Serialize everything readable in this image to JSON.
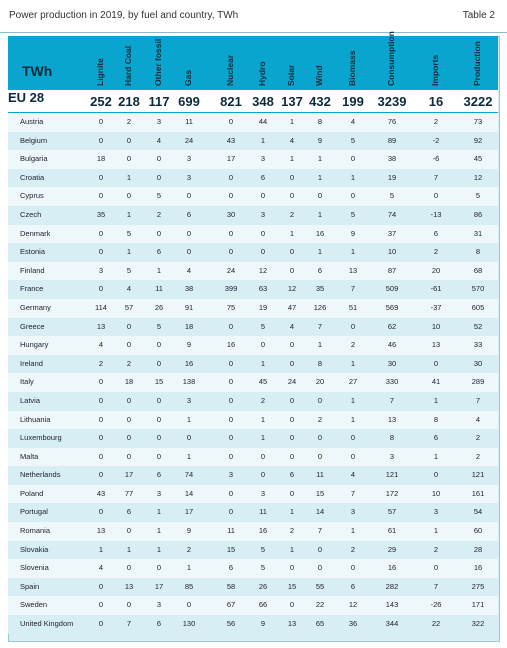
{
  "header": {
    "title": "Power production in 2019, by fuel and country, TWh",
    "tag": "Table 2",
    "unit_label": "TWh"
  },
  "columns": [
    "Lignite",
    "Hard Coal",
    "Other fossil",
    "Gas",
    "Nuclear",
    "Hydro",
    "Solar",
    "Wind",
    "Biomass",
    "Consumption",
    "Imports",
    "Production"
  ],
  "eu_row": {
    "name": "EU 28",
    "values": [
      "252",
      "218",
      "117",
      "699",
      "821",
      "348",
      "137",
      "432",
      "199",
      "3239",
      "16",
      "3222"
    ]
  },
  "rows": [
    {
      "name": "Austria",
      "values": [
        "0",
        "2",
        "3",
        "11",
        "0",
        "44",
        "1",
        "8",
        "4",
        "76",
        "2",
        "73"
      ]
    },
    {
      "name": "Belgium",
      "values": [
        "0",
        "0",
        "4",
        "24",
        "43",
        "1",
        "4",
        "9",
        "5",
        "89",
        "-2",
        "92"
      ]
    },
    {
      "name": "Bulgaria",
      "values": [
        "18",
        "0",
        "0",
        "3",
        "17",
        "3",
        "1",
        "1",
        "0",
        "38",
        "-6",
        "45"
      ]
    },
    {
      "name": "Croatia",
      "values": [
        "0",
        "1",
        "0",
        "3",
        "0",
        "6",
        "0",
        "1",
        "1",
        "19",
        "7",
        "12"
      ]
    },
    {
      "name": "Cyprus",
      "values": [
        "0",
        "0",
        "5",
        "0",
        "0",
        "0",
        "0",
        "0",
        "0",
        "5",
        "0",
        "5"
      ]
    },
    {
      "name": "Czech",
      "values": [
        "35",
        "1",
        "2",
        "6",
        "30",
        "3",
        "2",
        "1",
        "5",
        "74",
        "-13",
        "86"
      ]
    },
    {
      "name": "Denmark",
      "values": [
        "0",
        "5",
        "0",
        "0",
        "0",
        "0",
        "1",
        "16",
        "9",
        "37",
        "6",
        "31"
      ]
    },
    {
      "name": "Estonia",
      "values": [
        "0",
        "1",
        "6",
        "0",
        "0",
        "0",
        "0",
        "1",
        "1",
        "10",
        "2",
        "8"
      ]
    },
    {
      "name": "Finland",
      "values": [
        "3",
        "5",
        "1",
        "4",
        "24",
        "12",
        "0",
        "6",
        "13",
        "87",
        "20",
        "68"
      ]
    },
    {
      "name": "France",
      "values": [
        "0",
        "4",
        "11",
        "38",
        "399",
        "63",
        "12",
        "35",
        "7",
        "509",
        "-61",
        "570"
      ]
    },
    {
      "name": "Germany",
      "values": [
        "114",
        "57",
        "26",
        "91",
        "75",
        "19",
        "47",
        "126",
        "51",
        "569",
        "-37",
        "605"
      ]
    },
    {
      "name": "Greece",
      "values": [
        "13",
        "0",
        "5",
        "18",
        "0",
        "5",
        "4",
        "7",
        "0",
        "62",
        "10",
        "52"
      ]
    },
    {
      "name": "Hungary",
      "values": [
        "4",
        "0",
        "0",
        "9",
        "16",
        "0",
        "0",
        "1",
        "2",
        "46",
        "13",
        "33"
      ]
    },
    {
      "name": "Ireland",
      "values": [
        "2",
        "2",
        "0",
        "16",
        "0",
        "1",
        "0",
        "8",
        "1",
        "30",
        "0",
        "30"
      ]
    },
    {
      "name": "Italy",
      "values": [
        "0",
        "18",
        "15",
        "138",
        "0",
        "45",
        "24",
        "20",
        "27",
        "330",
        "41",
        "289"
      ]
    },
    {
      "name": "Latvia",
      "values": [
        "0",
        "0",
        "0",
        "3",
        "0",
        "2",
        "0",
        "0",
        "1",
        "7",
        "1",
        "7"
      ]
    },
    {
      "name": "Lithuania",
      "values": [
        "0",
        "0",
        "0",
        "1",
        "0",
        "1",
        "0",
        "2",
        "1",
        "13",
        "8",
        "4"
      ]
    },
    {
      "name": "Luxembourg",
      "values": [
        "0",
        "0",
        "0",
        "0",
        "0",
        "1",
        "0",
        "0",
        "0",
        "8",
        "6",
        "2"
      ]
    },
    {
      "name": "Malta",
      "values": [
        "0",
        "0",
        "0",
        "1",
        "0",
        "0",
        "0",
        "0",
        "0",
        "3",
        "1",
        "2"
      ]
    },
    {
      "name": "Netherlands",
      "values": [
        "0",
        "17",
        "6",
        "74",
        "3",
        "0",
        "6",
        "11",
        "4",
        "121",
        "0",
        "121"
      ]
    },
    {
      "name": "Poland",
      "values": [
        "43",
        "77",
        "3",
        "14",
        "0",
        "3",
        "0",
        "15",
        "7",
        "172",
        "10",
        "161"
      ]
    },
    {
      "name": "Portugal",
      "values": [
        "0",
        "6",
        "1",
        "17",
        "0",
        "11",
        "1",
        "14",
        "3",
        "57",
        "3",
        "54"
      ]
    },
    {
      "name": "Romania",
      "values": [
        "13",
        "0",
        "1",
        "9",
        "11",
        "16",
        "2",
        "7",
        "1",
        "61",
        "1",
        "60"
      ]
    },
    {
      "name": "Slovakia",
      "values": [
        "1",
        "1",
        "1",
        "2",
        "15",
        "5",
        "1",
        "0",
        "2",
        "29",
        "2",
        "28"
      ]
    },
    {
      "name": "Slovenia",
      "values": [
        "4",
        "0",
        "0",
        "1",
        "6",
        "5",
        "0",
        "0",
        "0",
        "16",
        "0",
        "16"
      ]
    },
    {
      "name": "Spain",
      "values": [
        "0",
        "13",
        "17",
        "85",
        "58",
        "26",
        "15",
        "55",
        "6",
        "282",
        "7",
        "275"
      ]
    },
    {
      "name": "Sweden",
      "values": [
        "0",
        "0",
        "3",
        "0",
        "67",
        "66",
        "0",
        "22",
        "12",
        "143",
        "-26",
        "171"
      ]
    },
    {
      "name": "United Kingdom",
      "values": [
        "0",
        "7",
        "6",
        "130",
        "56",
        "9",
        "13",
        "65",
        "36",
        "344",
        "22",
        "322"
      ]
    }
  ]
}
